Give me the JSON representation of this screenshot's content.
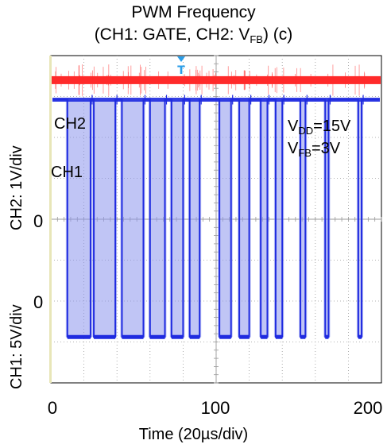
{
  "title": {
    "line1": "PWM Frequency",
    "line2_prefix": "(CH1: GATE, CH2: V",
    "line2_sub": "FB",
    "line2_suffix": ") (c)"
  },
  "axes": {
    "ylabel_ch2": "CH2: 1V/div",
    "ylabel_ch1": "CH1: 5V/div",
    "ch2_zero": "0",
    "ch1_zero": "0",
    "xlabel": "Time (20µs/div)",
    "xticks": [
      "0",
      "100",
      "200"
    ]
  },
  "annotations": {
    "ch2_label": "CH2",
    "ch1_label": "CH1",
    "vdd_prefix": "V",
    "vdd_sub": "DD",
    "vdd_value": "=15V",
    "vfb_prefix": "V",
    "vfb_sub": "FB",
    "vfb_value": "=3V",
    "trigger_marker": "T"
  },
  "colors": {
    "ch1": "#1f2be0",
    "ch1_persist": "#8c95ec",
    "ch2": "#ff2a2a",
    "grid": "#9a9a9a",
    "trigger": "#2a9de8"
  },
  "chart_data": {
    "type": "line",
    "xlim": [
      0,
      200
    ],
    "x_unit": "µs",
    "grid": true,
    "series": [
      {
        "name": "CH2",
        "kind": "flat",
        "level_div": 3.4
      },
      {
        "name": "CH1",
        "kind": "pwm",
        "high_div": 5.0,
        "low_div": -0.8,
        "pulse_edges_us": [
          [
            10,
            24
          ],
          [
            26,
            39
          ],
          [
            43,
            56
          ],
          [
            60,
            69
          ],
          [
            73,
            80
          ],
          [
            84,
            90
          ],
          [
            102,
            109
          ],
          [
            114,
            120
          ],
          [
            127,
            131
          ],
          [
            136,
            140
          ],
          [
            151,
            154
          ],
          [
            166,
            168
          ],
          [
            186,
            188
          ]
        ]
      }
    ]
  }
}
